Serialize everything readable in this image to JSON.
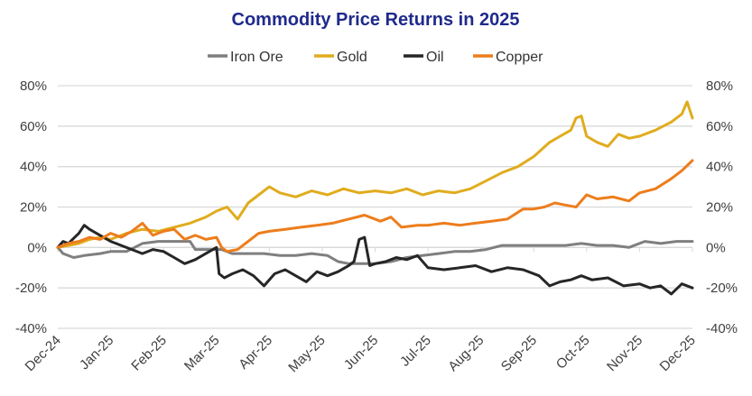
{
  "chart_data": {
    "type": "line",
    "title": "Commodity Price Returns in 2025",
    "xlabel": "",
    "ylabel": "",
    "legend_position": "top-center",
    "grid": true,
    "ylim": [
      -40,
      80
    ],
    "y_ticks": [
      80,
      60,
      40,
      20,
      0,
      -20,
      -40
    ],
    "y_tick_labels": [
      "80%",
      "60%",
      "40%",
      "20%",
      "0%",
      "-20%",
      "-40%"
    ],
    "y_tick_labels_right": [
      "80%",
      "60%",
      "40%",
      "20%",
      "0%",
      "-20%",
      "-40%"
    ],
    "x_range_months": [
      0,
      12
    ],
    "x_ticks": [
      0,
      1,
      2,
      3,
      4,
      5,
      6,
      7,
      8,
      9,
      10,
      11,
      12
    ],
    "x_tick_labels": [
      "Dec-24",
      "Jan-25",
      "Feb-25",
      "Mar-25",
      "Apr-25",
      "May-25",
      "Jun-25",
      "Jul-25",
      "Aug-25",
      "Sep-25",
      "Oct-25",
      "Nov-25",
      "Dec-25"
    ],
    "x_units": "months since Dec-24",
    "series": [
      {
        "name": "Iron Ore",
        "color": "#7f7f7f",
        "x": [
          0,
          0.1,
          0.3,
          0.5,
          0.8,
          1.0,
          1.3,
          1.6,
          1.9,
          2.2,
          2.5,
          2.6,
          2.8,
          3.0,
          3.1,
          3.3,
          3.6,
          3.9,
          4.2,
          4.5,
          4.8,
          5.1,
          5.3,
          5.5,
          5.7,
          6.0,
          6.3,
          6.6,
          6.9,
          7.2,
          7.5,
          7.8,
          8.1,
          8.4,
          8.7,
          9.0,
          9.3,
          9.6,
          9.9,
          10.2,
          10.5,
          10.8,
          11.1,
          11.4,
          11.7,
          12.0
        ],
        "values": [
          0,
          -3,
          -5,
          -4,
          -3,
          -2,
          -2,
          2,
          3,
          3,
          3,
          -1,
          -1,
          -1,
          -1,
          -3,
          -3,
          -3,
          -4,
          -4,
          -3,
          -4,
          -7,
          -8,
          -8,
          -8,
          -7,
          -5,
          -4,
          -3,
          -2,
          -2,
          -1,
          1,
          1,
          1,
          1,
          1,
          2,
          1,
          1,
          0,
          3,
          2,
          3,
          3
        ]
      },
      {
        "name": "Gold",
        "color": "#e0ac1e",
        "x": [
          0,
          0.2,
          0.4,
          0.6,
          0.8,
          1.0,
          1.3,
          1.6,
          1.9,
          2.2,
          2.5,
          2.8,
          3.0,
          3.2,
          3.4,
          3.6,
          3.8,
          4.0,
          4.2,
          4.5,
          4.8,
          5.1,
          5.4,
          5.7,
          6.0,
          6.3,
          6.6,
          6.9,
          7.2,
          7.5,
          7.8,
          8.1,
          8.4,
          8.7,
          9.0,
          9.3,
          9.5,
          9.7,
          9.8,
          9.9,
          10.0,
          10.2,
          10.4,
          10.6,
          10.8,
          11.0,
          11.3,
          11.6,
          11.8,
          11.9,
          12.0
        ],
        "values": [
          0,
          1,
          2,
          4,
          5,
          4,
          7,
          9,
          8,
          10,
          12,
          15,
          18,
          20,
          14,
          22,
          26,
          30,
          27,
          25,
          28,
          26,
          29,
          27,
          28,
          27,
          29,
          26,
          28,
          27,
          29,
          33,
          37,
          40,
          45,
          52,
          55,
          58,
          64,
          65,
          55,
          52,
          50,
          56,
          54,
          55,
          58,
          62,
          66,
          72,
          64
        ]
      },
      {
        "name": "Oil",
        "color": "#262626",
        "x": [
          0,
          0.1,
          0.2,
          0.4,
          0.5,
          0.6,
          0.8,
          1.0,
          1.2,
          1.4,
          1.6,
          1.8,
          2.0,
          2.2,
          2.4,
          2.6,
          2.8,
          3.0,
          3.05,
          3.15,
          3.3,
          3.5,
          3.7,
          3.9,
          4.1,
          4.3,
          4.5,
          4.7,
          4.9,
          5.1,
          5.3,
          5.5,
          5.6,
          5.7,
          5.8,
          5.9,
          6.0,
          6.2,
          6.4,
          6.6,
          6.8,
          7.0,
          7.3,
          7.6,
          7.9,
          8.2,
          8.5,
          8.8,
          9.1,
          9.3,
          9.5,
          9.7,
          9.9,
          10.1,
          10.4,
          10.7,
          11.0,
          11.2,
          11.4,
          11.6,
          11.8,
          12.0
        ],
        "values": [
          0,
          3,
          2,
          7,
          11,
          9,
          6,
          3,
          1,
          -1,
          -3,
          -1,
          -2,
          -5,
          -8,
          -6,
          -3,
          0,
          -13,
          -15,
          -13,
          -11,
          -14,
          -19,
          -13,
          -11,
          -14,
          -17,
          -12,
          -14,
          -12,
          -9,
          -7,
          4,
          5,
          -9,
          -8,
          -7,
          -5,
          -6,
          -4,
          -10,
          -11,
          -10,
          -9,
          -12,
          -10,
          -11,
          -14,
          -19,
          -17,
          -16,
          -14,
          -16,
          -15,
          -19,
          -18,
          -20,
          -19,
          -23,
          -18,
          -20
        ]
      },
      {
        "name": "Copper",
        "color": "#ed7d1c",
        "x": [
          0,
          0.2,
          0.4,
          0.6,
          0.8,
          1.0,
          1.2,
          1.4,
          1.6,
          1.8,
          2.0,
          2.2,
          2.4,
          2.6,
          2.8,
          3.0,
          3.1,
          3.2,
          3.4,
          3.6,
          3.8,
          4.0,
          4.3,
          4.6,
          4.9,
          5.2,
          5.5,
          5.8,
          6.1,
          6.3,
          6.5,
          6.8,
          7.0,
          7.3,
          7.6,
          7.9,
          8.2,
          8.5,
          8.8,
          9.0,
          9.2,
          9.4,
          9.6,
          9.8,
          10.0,
          10.2,
          10.5,
          10.8,
          11.0,
          11.3,
          11.6,
          11.8,
          12.0
        ],
        "values": [
          0,
          2,
          3,
          5,
          4,
          7,
          5,
          8,
          12,
          6,
          8,
          9,
          4,
          6,
          4,
          5,
          0,
          -2,
          -1,
          3,
          7,
          8,
          9,
          10,
          11,
          12,
          14,
          16,
          13,
          15,
          10,
          11,
          11,
          12,
          11,
          12,
          13,
          14,
          19,
          19,
          20,
          22,
          21,
          20,
          26,
          24,
          25,
          23,
          27,
          29,
          34,
          38,
          43
        ]
      }
    ]
  }
}
